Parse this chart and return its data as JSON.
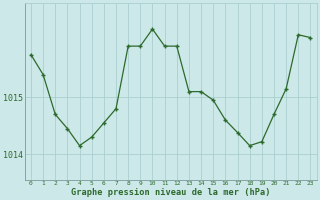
{
  "x": [
    0,
    1,
    2,
    3,
    4,
    5,
    6,
    7,
    8,
    9,
    10,
    11,
    12,
    13,
    14,
    15,
    16,
    17,
    18,
    19,
    20,
    21,
    22,
    23
  ],
  "y": [
    1015.75,
    1015.4,
    1014.7,
    1014.45,
    1014.15,
    1014.3,
    1014.55,
    1014.8,
    1015.9,
    1015.9,
    1016.2,
    1015.9,
    1015.9,
    1015.1,
    1015.1,
    1014.95,
    1014.6,
    1014.38,
    1014.15,
    1014.22,
    1014.7,
    1015.15,
    1016.1,
    1016.05
  ],
  "line_color": "#2d6a2d",
  "marker": "P",
  "marker_size": 2.0,
  "bg_color": "#cce8e8",
  "grid_color": "#aacece",
  "tick_color": "#2d6a2d",
  "label_color": "#2d6a2d",
  "xlabel": "Graphe pression niveau de la mer (hPa)",
  "yticks": [
    1014,
    1015
  ],
  "ylim": [
    1013.55,
    1016.65
  ],
  "xlim": [
    -0.5,
    23.5
  ],
  "xticks": [
    0,
    1,
    2,
    3,
    4,
    5,
    6,
    7,
    8,
    9,
    10,
    11,
    12,
    13,
    14,
    15,
    16,
    17,
    18,
    19,
    20,
    21,
    22,
    23
  ]
}
